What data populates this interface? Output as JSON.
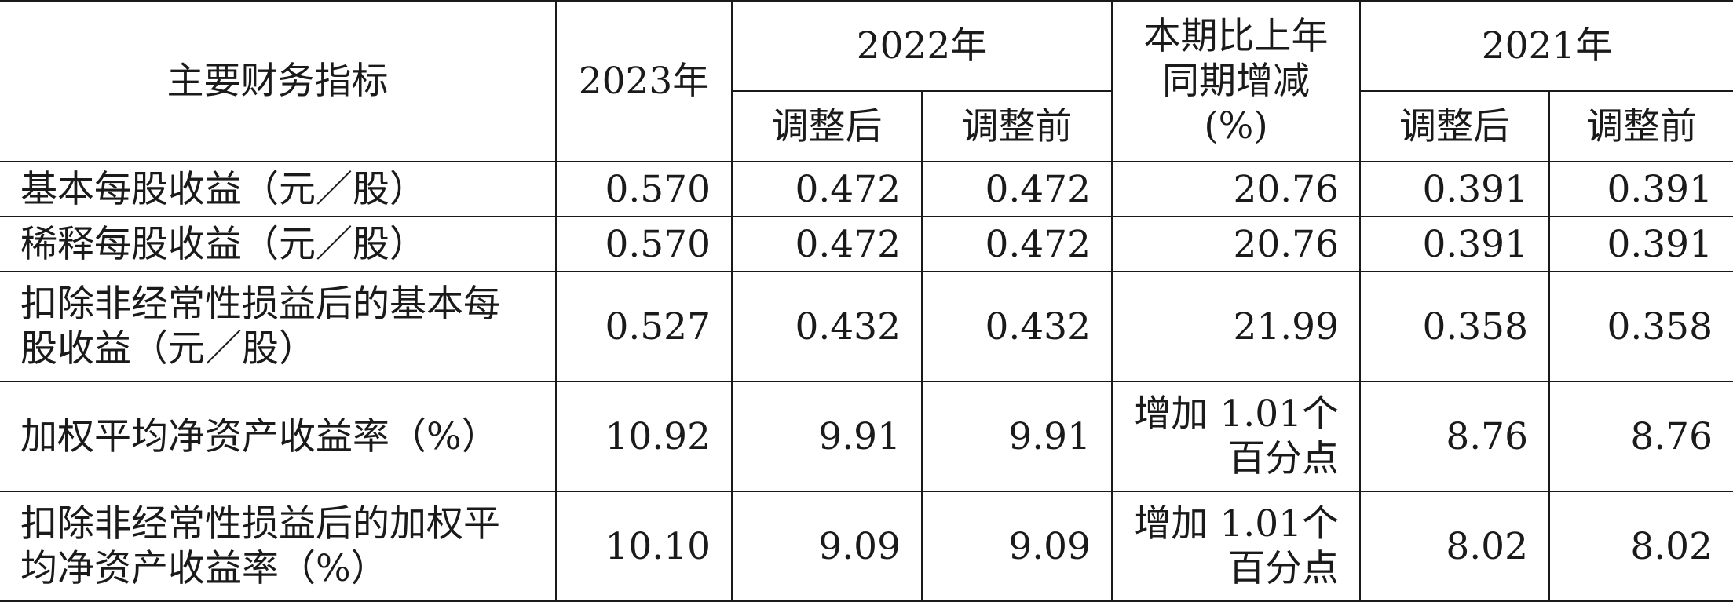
{
  "header": {
    "indicator": "主要财务指标",
    "y2023": "2023年",
    "y2022": "2022年",
    "change": "本期比上年同期增减(%)",
    "y2021": "2021年",
    "adjusted_after": "调整后",
    "adjusted_before": "调整前"
  },
  "rows": [
    {
      "label": "基本每股收益（元／股）",
      "y2023": "0.570",
      "y2022_after": "0.472",
      "y2022_before": "0.472",
      "change": "20.76",
      "y2021_after": "0.391",
      "y2021_before": "0.391"
    },
    {
      "label": "稀释每股收益（元／股）",
      "y2023": "0.570",
      "y2022_after": "0.472",
      "y2022_before": "0.472",
      "change": "20.76",
      "y2021_after": "0.391",
      "y2021_before": "0.391"
    },
    {
      "label": "扣除非经常性损益后的基本每股收益（元／股）",
      "y2023": "0.527",
      "y2022_after": "0.432",
      "y2022_before": "0.432",
      "change": "21.99",
      "y2021_after": "0.358",
      "y2021_before": "0.358"
    },
    {
      "label": "加权平均净资产收益率（%）",
      "y2023": "10.92",
      "y2022_after": "9.91",
      "y2022_before": "9.91",
      "change": "增加 1.01个百分点",
      "y2021_after": "8.76",
      "y2021_before": "8.76"
    },
    {
      "label": "扣除非经常性损益后的加权平均净资产收益率（%）",
      "y2023": "10.10",
      "y2022_after": "9.09",
      "y2022_before": "9.09",
      "change": "增加 1.01个百分点",
      "y2021_after": "8.02",
      "y2021_before": "8.02"
    }
  ]
}
